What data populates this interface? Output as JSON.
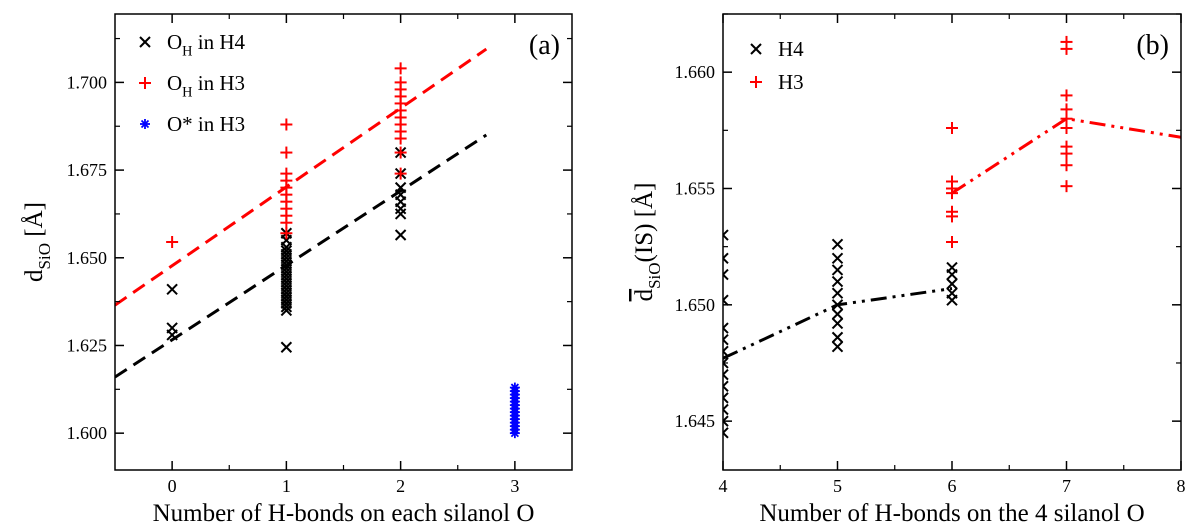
{
  "chart_data": [
    {
      "type": "scatter",
      "panel_label": "(a)",
      "xlabel": "Number of H-bonds on each silanol O",
      "ylabel_main": "d",
      "ylabel_sub": "SiO",
      "ylabel_unit": "[Å]",
      "xlim": [
        -0.5,
        3.5
      ],
      "ylim": [
        1.5895,
        1.7195
      ],
      "xticks": [
        0,
        1,
        2,
        3
      ],
      "yticks": [
        1.6,
        1.625,
        1.65,
        1.675,
        1.7
      ],
      "ytick_labels": [
        "1.600",
        "1.625",
        "1.650",
        "1.675",
        "1.700"
      ],
      "legend_position": "top-left",
      "series": [
        {
          "label_main": "O",
          "label_sub": "H",
          "label_rest": " in H4",
          "marker": "x",
          "color": "#000000",
          "points": [
            [
              0,
              1.641
            ],
            [
              0,
              1.63
            ],
            [
              0,
              1.628
            ],
            [
              1,
              1.6245
            ],
            [
              1,
              1.635
            ],
            [
              1,
              1.636
            ],
            [
              1,
              1.637
            ],
            [
              1,
              1.638
            ],
            [
              1,
              1.639
            ],
            [
              1,
              1.64
            ],
            [
              1,
              1.641
            ],
            [
              1,
              1.642
            ],
            [
              1,
              1.643
            ],
            [
              1,
              1.644
            ],
            [
              1,
              1.645
            ],
            [
              1,
              1.646
            ],
            [
              1,
              1.647
            ],
            [
              1,
              1.648
            ],
            [
              1,
              1.649
            ],
            [
              1,
              1.65
            ],
            [
              1,
              1.651
            ],
            [
              1,
              1.652
            ],
            [
              1,
              1.653
            ],
            [
              1,
              1.655
            ],
            [
              1,
              1.657
            ],
            [
              2,
              1.6565
            ],
            [
              2,
              1.6625
            ],
            [
              2,
              1.664
            ],
            [
              2,
              1.666
            ],
            [
              2,
              1.668
            ],
            [
              2,
              1.67
            ],
            [
              2,
              1.674
            ],
            [
              2,
              1.68
            ]
          ]
        },
        {
          "label_main": "O",
          "label_sub": "H",
          "label_rest": " in H3",
          "marker": "+",
          "color": "#ff0000",
          "points": [
            [
              0,
              1.6545
            ],
            [
              1,
              1.657
            ],
            [
              1,
              1.66
            ],
            [
              1,
              1.662
            ],
            [
              1,
              1.664
            ],
            [
              1,
              1.666
            ],
            [
              1,
              1.668
            ],
            [
              1,
              1.67
            ],
            [
              1,
              1.672
            ],
            [
              1,
              1.674
            ],
            [
              1,
              1.68
            ],
            [
              1,
              1.688
            ],
            [
              2,
              1.674
            ],
            [
              2,
              1.68
            ],
            [
              2,
              1.684
            ],
            [
              2,
              1.686
            ],
            [
              2,
              1.688
            ],
            [
              2,
              1.69
            ],
            [
              2,
              1.692
            ],
            [
              2,
              1.694
            ],
            [
              2,
              1.696
            ],
            [
              2,
              1.698
            ],
            [
              2,
              1.7
            ],
            [
              2,
              1.704
            ]
          ]
        },
        {
          "label_main": "O*",
          "label_sub": "",
          "label_rest": " in H3",
          "marker": "*",
          "color": "#0000ff",
          "points": [
            [
              3,
              1.6
            ],
            [
              3,
              1.601
            ],
            [
              3,
              1.602
            ],
            [
              3,
              1.603
            ],
            [
              3,
              1.604
            ],
            [
              3,
              1.605
            ],
            [
              3,
              1.606
            ],
            [
              3,
              1.607
            ],
            [
              3,
              1.608
            ],
            [
              3,
              1.609
            ],
            [
              3,
              1.61
            ],
            [
              3,
              1.611
            ],
            [
              3,
              1.612
            ],
            [
              3,
              1.613
            ]
          ]
        }
      ],
      "fit_lines": [
        {
          "color": "#000000",
          "style": "dashed",
          "x": [
            -0.5,
            2.75
          ],
          "y": [
            1.616,
            1.685
          ]
        },
        {
          "color": "#ff0000",
          "style": "dashed",
          "x": [
            -0.5,
            2.75
          ],
          "y": [
            1.6365,
            1.7095
          ]
        }
      ]
    },
    {
      "type": "scatter",
      "panel_label": "(b)",
      "xlabel": "Number of H-bonds on the 4 silanol O",
      "ylabel_main": "d",
      "ylabel_sub": "SiO",
      "ylabel_unit": "(IS) [Å]",
      "xlim": [
        4,
        8
      ],
      "ylim": [
        1.6429,
        1.6625
      ],
      "xticks": [
        4,
        5,
        6,
        7,
        8
      ],
      "yticks": [
        1.645,
        1.65,
        1.655,
        1.66
      ],
      "ytick_labels": [
        "1.645",
        "1.650",
        "1.655",
        "1.660"
      ],
      "legend_position": "top-left",
      "series": [
        {
          "label_main": "H4",
          "label_sub": "",
          "label_rest": "",
          "marker": "x",
          "color": "#000000",
          "points": [
            [
              4,
              1.6445
            ],
            [
              4,
              1.645
            ],
            [
              4,
              1.6455
            ],
            [
              4,
              1.646
            ],
            [
              4,
              1.6465
            ],
            [
              4,
              1.647
            ],
            [
              4,
              1.6475
            ],
            [
              4,
              1.648
            ],
            [
              4,
              1.6485
            ],
            [
              4,
              1.649
            ],
            [
              4,
              1.6502
            ],
            [
              4,
              1.6513
            ],
            [
              4,
              1.652
            ],
            [
              4,
              1.653
            ],
            [
              5,
              1.6482
            ],
            [
              5,
              1.6486
            ],
            [
              5,
              1.6492
            ],
            [
              5,
              1.6496
            ],
            [
              5,
              1.65
            ],
            [
              5,
              1.6505
            ],
            [
              5,
              1.651
            ],
            [
              5,
              1.6515
            ],
            [
              5,
              1.652
            ],
            [
              5,
              1.6526
            ],
            [
              6,
              1.6502
            ],
            [
              6,
              1.6505
            ],
            [
              6,
              1.6509
            ],
            [
              6,
              1.6513
            ],
            [
              6,
              1.6516
            ]
          ]
        },
        {
          "label_main": "H3",
          "label_sub": "",
          "label_rest": "",
          "marker": "+",
          "color": "#ff0000",
          "points": [
            [
              6,
              1.6527
            ],
            [
              6,
              1.6538
            ],
            [
              6,
              1.654
            ],
            [
              6,
              1.6548
            ],
            [
              6,
              1.655
            ],
            [
              6,
              1.6553
            ],
            [
              6,
              1.6576
            ],
            [
              7,
              1.6551
            ],
            [
              7,
              1.656
            ],
            [
              7,
              1.6565
            ],
            [
              7,
              1.6568
            ],
            [
              7,
              1.6576
            ],
            [
              7,
              1.658
            ],
            [
              7,
              1.6584
            ],
            [
              7,
              1.659
            ],
            [
              7,
              1.661
            ],
            [
              7,
              1.6613
            ]
          ]
        }
      ],
      "fit_lines": [
        {
          "color": "#000000",
          "style": "dashdotdot",
          "x": [
            4,
            5,
            6
          ],
          "y": [
            1.6477,
            1.65,
            1.6507
          ]
        },
        {
          "color": "#ff0000",
          "style": "dashdotdot",
          "x": [
            6,
            7,
            8
          ],
          "y": [
            1.6548,
            1.658,
            1.6572
          ]
        }
      ]
    }
  ]
}
